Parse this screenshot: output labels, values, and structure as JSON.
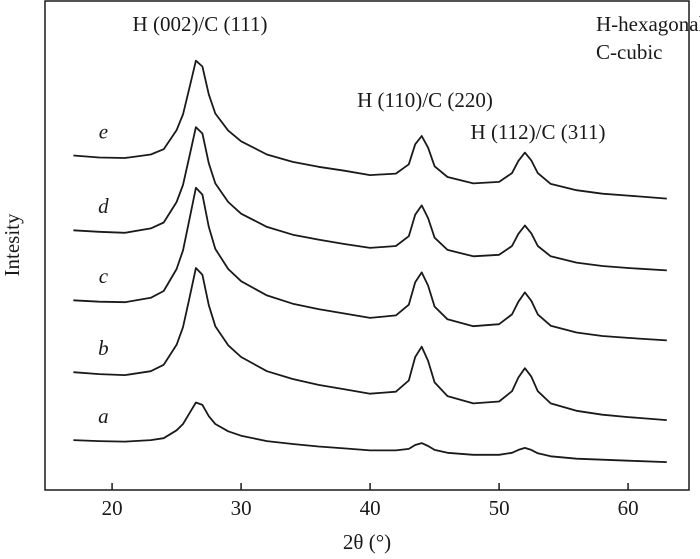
{
  "chart_data": {
    "type": "line",
    "xlabel": "2θ (°)",
    "ylabel": "Intesity",
    "annotations": [
      "H (002)/C (111)",
      "H (110)/C (220)",
      "H (112)/C (311)",
      "H-hexagonal",
      "C-cubic"
    ],
    "xlim": [
      14.8,
      64.8
    ],
    "ylim": [
      0,
      100
    ],
    "xticks": [
      20,
      30,
      40,
      50,
      60
    ],
    "x": [
      17,
      19,
      21,
      23,
      24,
      25,
      25.5,
      26,
      26.5,
      27,
      27.5,
      28,
      29,
      30,
      32,
      34,
      36,
      38,
      40,
      42,
      43,
      43.5,
      44,
      44.5,
      45,
      46,
      48,
      50,
      51,
      51.5,
      52,
      52.5,
      53,
      54,
      56,
      58,
      60,
      63
    ],
    "series": [
      {
        "name": "e",
        "color": "#1a1a1a",
        "values": [
          68.4,
          68.0,
          67.9,
          68.6,
          69.7,
          73.6,
          76.8,
          82.3,
          87.8,
          86.6,
          80.9,
          77.0,
          73.5,
          71.3,
          68.6,
          67.1,
          66.1,
          65.3,
          64.4,
          64.7,
          66.6,
          70.7,
          72.4,
          70.0,
          66.2,
          64.0,
          62.7,
          63.0,
          64.8,
          67.3,
          69.0,
          67.4,
          64.8,
          62.6,
          61.3,
          60.6,
          60.2,
          59.6
        ]
      },
      {
        "name": "d",
        "color": "#1a1a1a",
        "values": [
          53.1,
          52.8,
          52.6,
          53.5,
          54.7,
          58.9,
          62.4,
          68.3,
          74.2,
          72.9,
          66.8,
          62.7,
          58.9,
          56.5,
          53.8,
          52.2,
          51.2,
          50.3,
          49.5,
          49.9,
          51.9,
          56.3,
          58.2,
          55.6,
          51.6,
          49.1,
          47.8,
          48.1,
          49.9,
          52.4,
          54.1,
          52.5,
          49.9,
          47.8,
          46.5,
          45.8,
          45.4,
          44.9
        ]
      },
      {
        "name": "c",
        "color": "#1a1a1a",
        "values": [
          38.8,
          38.5,
          38.4,
          39.3,
          40.7,
          45.2,
          49.0,
          55.4,
          61.8,
          60.4,
          53.8,
          49.3,
          45.2,
          42.7,
          39.8,
          38.1,
          37.0,
          36.1,
          35.2,
          35.7,
          37.9,
          42.5,
          44.5,
          41.8,
          37.5,
          34.9,
          33.5,
          33.9,
          35.9,
          38.5,
          40.4,
          38.7,
          35.9,
          33.6,
          32.2,
          31.5,
          31.1,
          30.6
        ]
      },
      {
        "name": "b",
        "color": "#1a1a1a",
        "values": [
          24.1,
          23.7,
          23.5,
          24.3,
          25.6,
          29.7,
          33.3,
          39.3,
          45.4,
          44.0,
          37.8,
          33.5,
          29.6,
          27.2,
          24.3,
          22.7,
          21.5,
          20.6,
          19.7,
          20.1,
          22.4,
          27.2,
          29.3,
          26.4,
          22.0,
          19.2,
          17.7,
          18.1,
          20.2,
          23.0,
          24.9,
          23.2,
          20.2,
          17.7,
          16.2,
          15.4,
          14.9,
          14.3
        ]
      },
      {
        "name": "a",
        "color": "#1a1a1a",
        "values": [
          10.2,
          10.0,
          9.9,
          10.2,
          10.6,
          12.2,
          13.5,
          15.7,
          17.9,
          17.4,
          15.1,
          13.5,
          12.0,
          11.1,
          10.0,
          9.4,
          8.9,
          8.5,
          8.1,
          8.1,
          8.4,
          9.2,
          9.6,
          9.0,
          8.2,
          7.6,
          7.2,
          7.2,
          7.6,
          8.2,
          8.6,
          8.2,
          7.5,
          6.9,
          6.4,
          6.2,
          6.0,
          5.7
        ]
      }
    ]
  }
}
